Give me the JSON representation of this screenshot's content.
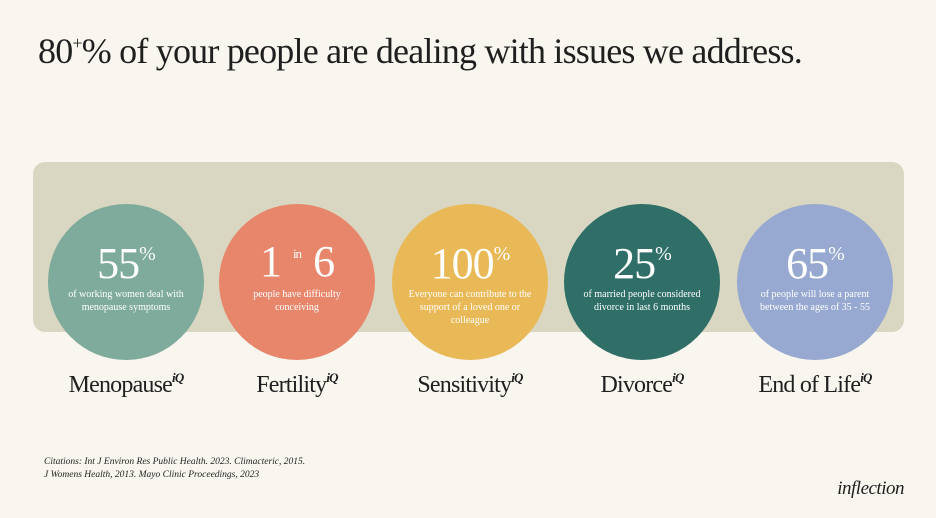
{
  "header": {
    "title_number": "80",
    "title_sup": "+",
    "title_rest": "% of your people are dealing with issues we address."
  },
  "items": [
    {
      "stat": "55",
      "stat_sup": "%",
      "description": "of working women deal with menopause symptoms",
      "label": "Menopause",
      "label_sup": "iQ"
    },
    {
      "stat": "1",
      "stat_small": "in",
      "stat_end": "6",
      "description": "people have difficulty conceiving",
      "label": "Fertility",
      "label_sup": "iQ"
    },
    {
      "stat": "100",
      "stat_sup": "%",
      "description": "Everyone can contribute to the support of a  loved one or colleague",
      "label": "Sensitivity",
      "label_sup": "iQ"
    },
    {
      "stat": "25",
      "stat_sup": "%",
      "description": "of married people considered divorce in last 6 months",
      "label": "Divorce",
      "label_sup": "iQ"
    },
    {
      "stat": "65",
      "stat_sup": "%",
      "description": "of people will lose a parent between the ages of 35 - 55",
      "label": "End of Life",
      "label_sup": "iQ"
    }
  ],
  "footer": {
    "citation": "Citations: Int J Environ Res Public Health. 2023. Climacteric, 2015. J Womens Health, 2013. Mayo Clinic Proceedings, 2023",
    "logo": "inflection"
  }
}
